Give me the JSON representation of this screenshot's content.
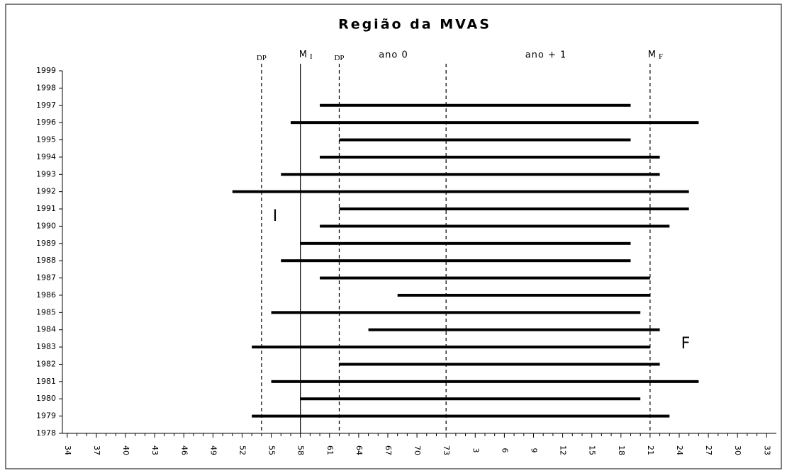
{
  "chart_data": {
    "type": "range_bar",
    "title": "Região da MVAS",
    "xlim": [
      33.5,
      107
    ],
    "ylim": [
      1978,
      1999
    ],
    "xticks": [
      34,
      37,
      40,
      43,
      46,
      49,
      52,
      55,
      58,
      61,
      64,
      67,
      70,
      73,
      {
        "value": 76,
        "label": "3"
      },
      {
        "value": 79,
        "label": "6"
      },
      {
        "value": 82,
        "label": "9"
      },
      {
        "value": 85,
        "label": "12"
      },
      {
        "value": 88,
        "label": "15"
      },
      {
        "value": 91,
        "label": "18"
      },
      {
        "value": 94,
        "label": "21"
      },
      {
        "value": 97,
        "label": "24"
      },
      {
        "value": 100,
        "label": "27"
      },
      {
        "value": 103,
        "label": "30"
      },
      {
        "value": 106,
        "label": "33"
      }
    ],
    "yticks": [
      1978,
      1979,
      1980,
      1981,
      1982,
      1983,
      1984,
      1985,
      1986,
      1987,
      1988,
      1989,
      1990,
      1991,
      1992,
      1993,
      1994,
      1995,
      1996,
      1997,
      1998,
      1999
    ],
    "color": "#000000",
    "series": {
      "years": [
        1997,
        1996,
        1995,
        1994,
        1993,
        1992,
        1991,
        1990,
        1989,
        1988,
        1987,
        1986,
        1985,
        1984,
        1983,
        1982,
        1981,
        1980,
        1979
      ],
      "start": [
        60,
        57,
        62,
        60,
        56,
        51,
        62,
        60,
        58,
        56,
        60,
        68,
        55,
        65,
        53,
        62,
        55,
        58,
        53
      ],
      "end": [
        92,
        99,
        92,
        95,
        95,
        98,
        98,
        96,
        92,
        92,
        94,
        94,
        93,
        95,
        94,
        95,
        99,
        93,
        96
      ]
    },
    "reference_lines": [
      {
        "x": 54,
        "style": "dashed",
        "label": "DP"
      },
      {
        "x": 58,
        "style": "solid",
        "label": "M",
        "sub": "I"
      },
      {
        "x": 62,
        "style": "dashed",
        "label": "DP"
      },
      {
        "x": 73,
        "style": "dashed"
      },
      {
        "x": 94,
        "style": "dashed",
        "label": "M",
        "sub": "F"
      }
    ],
    "annotations": [
      "ano 0",
      "ano + 1",
      "I",
      "F"
    ]
  }
}
